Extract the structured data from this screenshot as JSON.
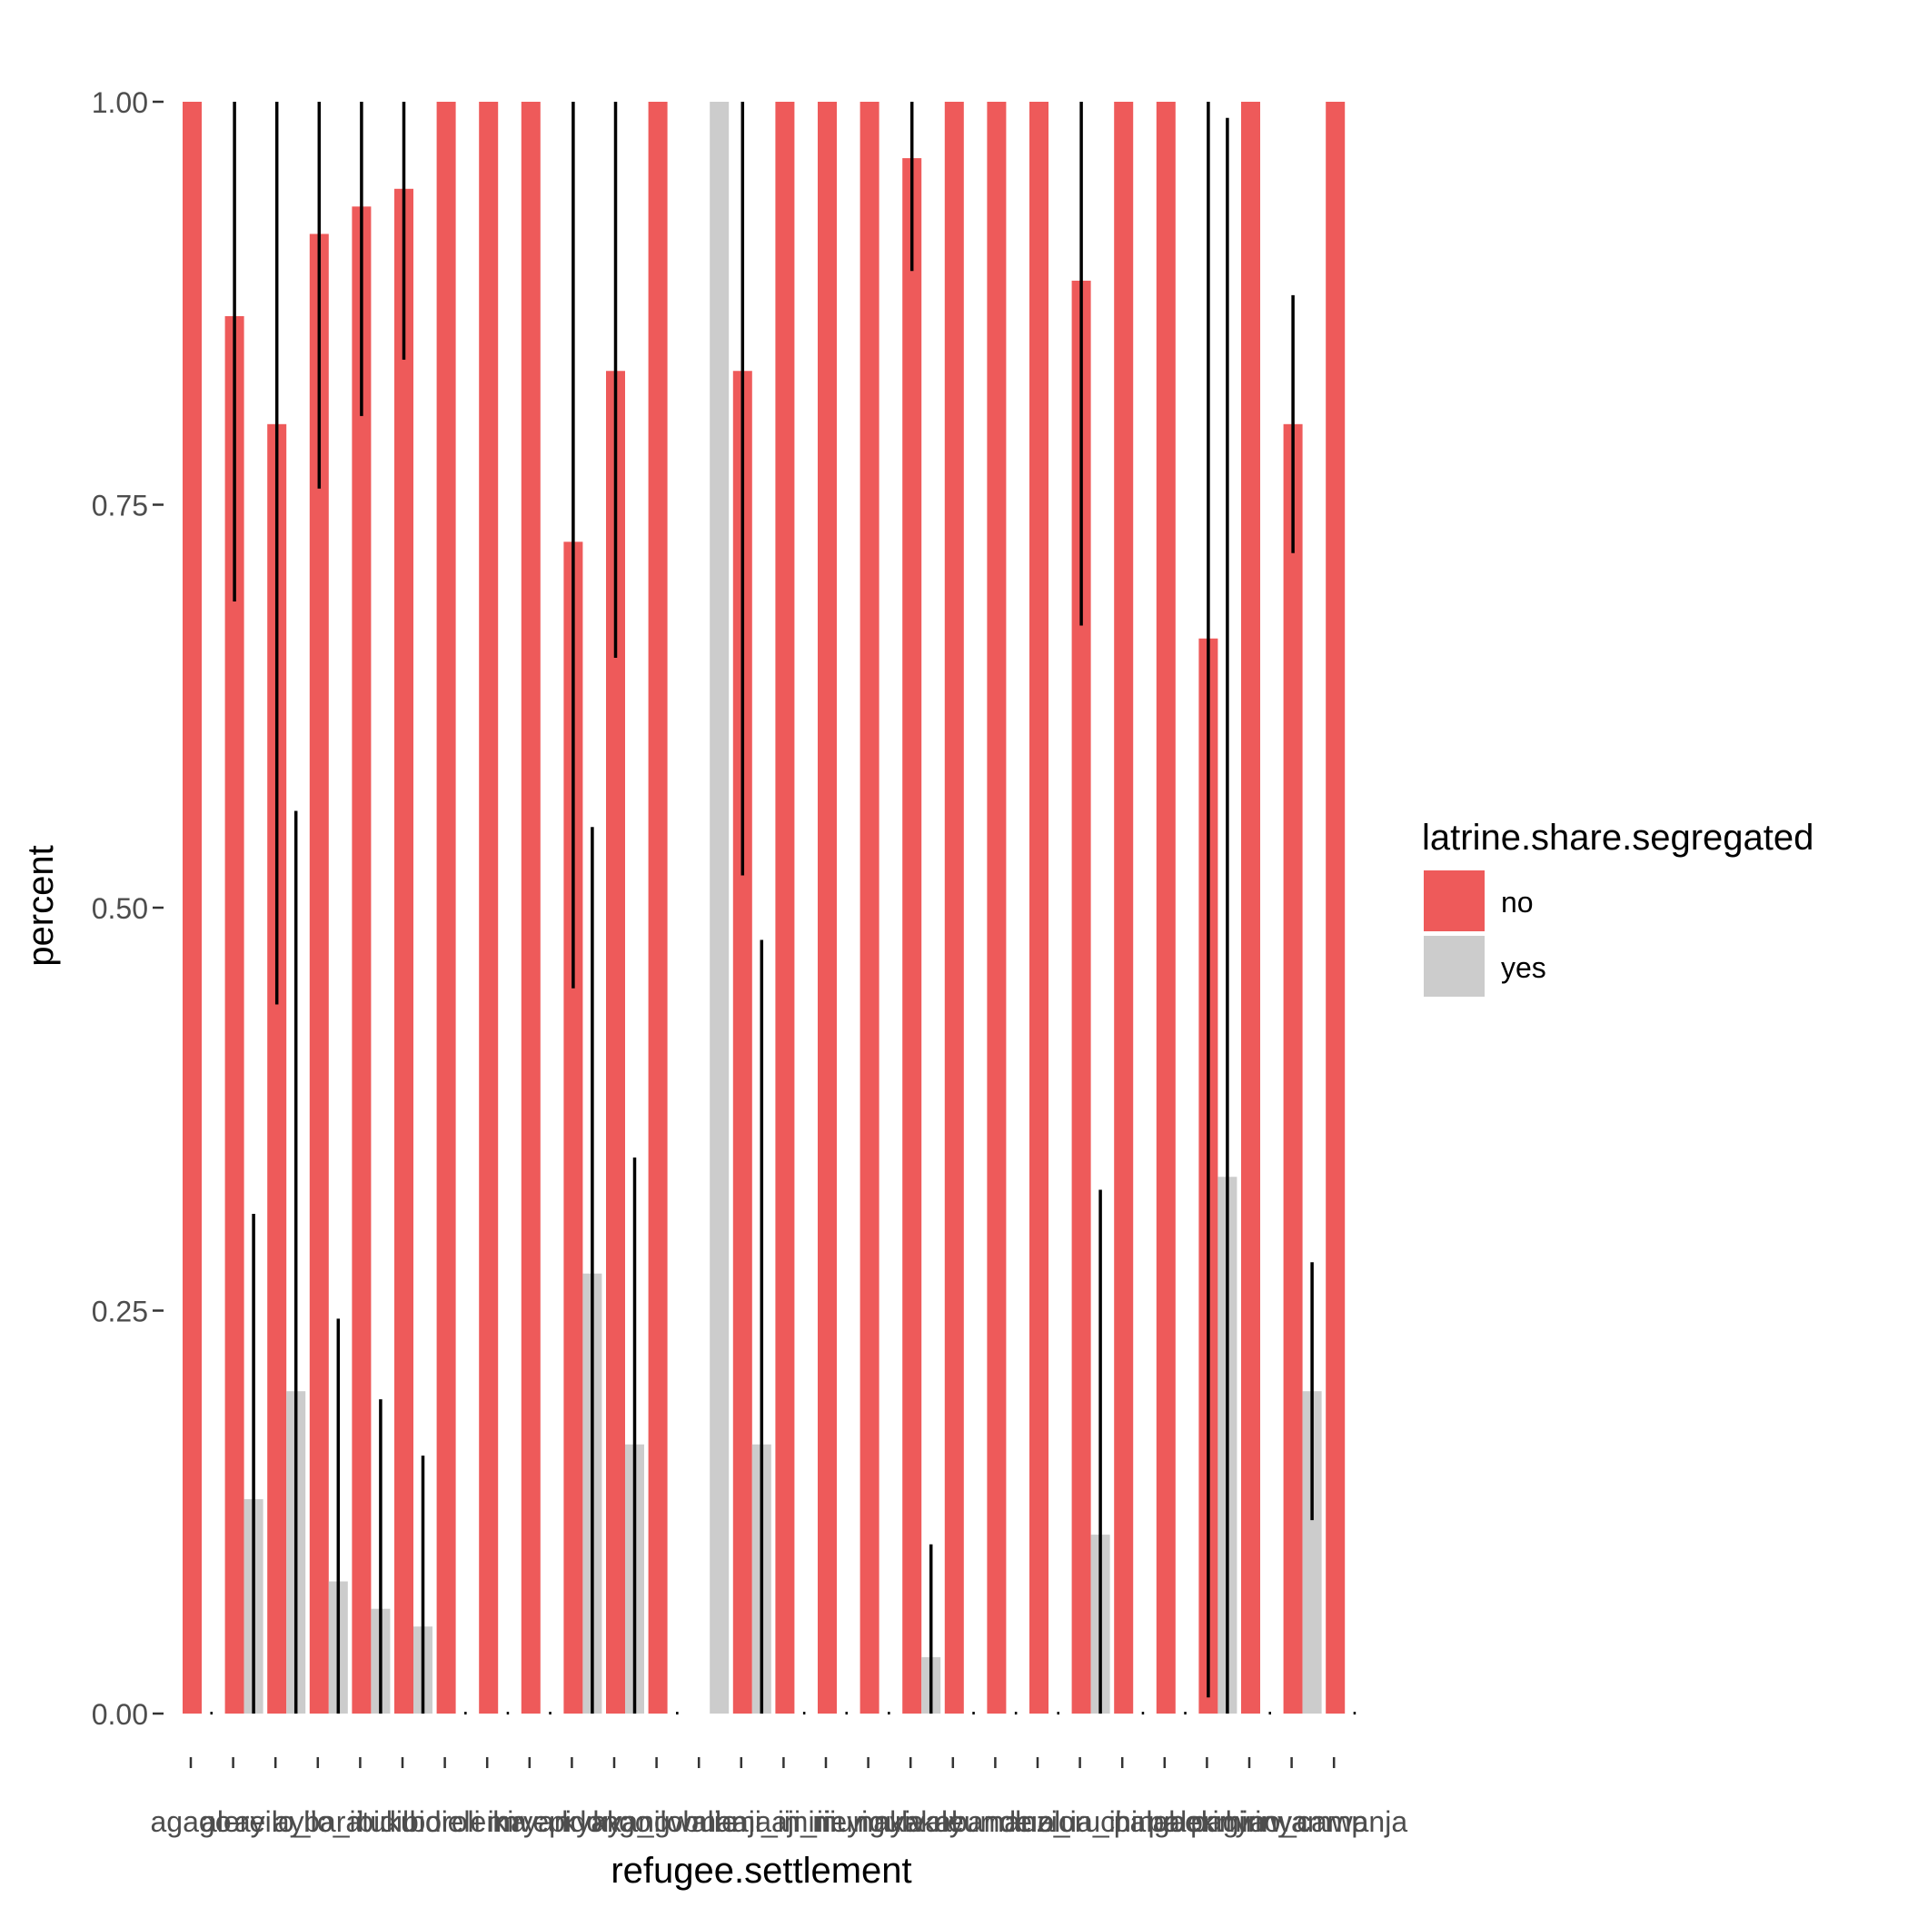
{
  "chart_data": {
    "type": "bar",
    "xlabel": "refugee.settlement",
    "ylabel": "percent",
    "ylim": [
      0,
      1
    ],
    "yticks": [
      "0.00",
      "0.25",
      "0.50",
      "0.75",
      "1.00"
    ],
    "grid": false,
    "legend": {
      "title": "latrine.share.segregated",
      "position": "right",
      "entries": [
        {
          "label": "no",
          "color": "#EE5A5A"
        },
        {
          "label": "yes",
          "color": "#CCCCCC"
        }
      ]
    },
    "categories": [
      "agago",
      "alere",
      "ayilo_i",
      "ayilo_ii",
      "baratuku",
      "bidibidi",
      "boroli",
      "elema",
      "imvepi",
      "kiryandongo",
      "kyaka_ii",
      "kyangwali",
      "lobule",
      "maaji_ii",
      "maaji_iii",
      "mirieyi",
      "mungula",
      "nakivale",
      "nyakabande",
      "nyumanzi",
      "olua_i",
      "olua_ii",
      "oruchinga",
      "palabek",
      "palorinya",
      "pagirinya",
      "rhino_camp",
      "rwamwanja"
    ],
    "series": [
      {
        "name": "no",
        "values": [
          1.0,
          0.867,
          0.8,
          0.918,
          0.935,
          0.946,
          1.0,
          1.0,
          1.0,
          0.727,
          0.833,
          1.0,
          null,
          0.833,
          1.0,
          1.0,
          1.0,
          0.965,
          1.0,
          1.0,
          1.0,
          0.889,
          1.0,
          1.0,
          0.667,
          1.0,
          0.8,
          1.0
        ]
      },
      {
        "name": "yes",
        "values": [
          null,
          0.133,
          0.2,
          0.082,
          0.065,
          0.054,
          null,
          null,
          null,
          0.273,
          0.167,
          null,
          1.0,
          0.167,
          null,
          null,
          null,
          0.035,
          null,
          null,
          null,
          0.111,
          null,
          null,
          0.333,
          null,
          0.2,
          null
        ]
      }
    ],
    "error_bars": {
      "no": [
        null,
        [
          0.69,
          1.0
        ],
        [
          0.44,
          1.0
        ],
        [
          0.76,
          1.0
        ],
        [
          0.805,
          1.0
        ],
        [
          0.84,
          1.0
        ],
        null,
        null,
        null,
        [
          0.45,
          1.0
        ],
        [
          0.655,
          1.0
        ],
        null,
        null,
        [
          0.52,
          1.0
        ],
        null,
        null,
        null,
        [
          0.895,
          1.0
        ],
        null,
        null,
        null,
        [
          0.675,
          1.0
        ],
        null,
        null,
        [
          0.01,
          1.0
        ],
        null,
        [
          0.72,
          0.88
        ],
        null
      ],
      "yes": [
        null,
        [
          0.0,
          0.31
        ],
        [
          0.0,
          0.56
        ],
        [
          0.0,
          0.245
        ],
        [
          0.0,
          0.195
        ],
        [
          0.0,
          0.16
        ],
        null,
        null,
        null,
        [
          0.0,
          0.55
        ],
        [
          0.0,
          0.345
        ],
        null,
        null,
        [
          0.0,
          0.48
        ],
        null,
        null,
        null,
        [
          0.0,
          0.105
        ],
        null,
        null,
        null,
        [
          0.0,
          0.325
        ],
        null,
        null,
        [
          0.0,
          0.99
        ],
        null,
        [
          0.12,
          0.28
        ],
        null
      ]
    }
  }
}
